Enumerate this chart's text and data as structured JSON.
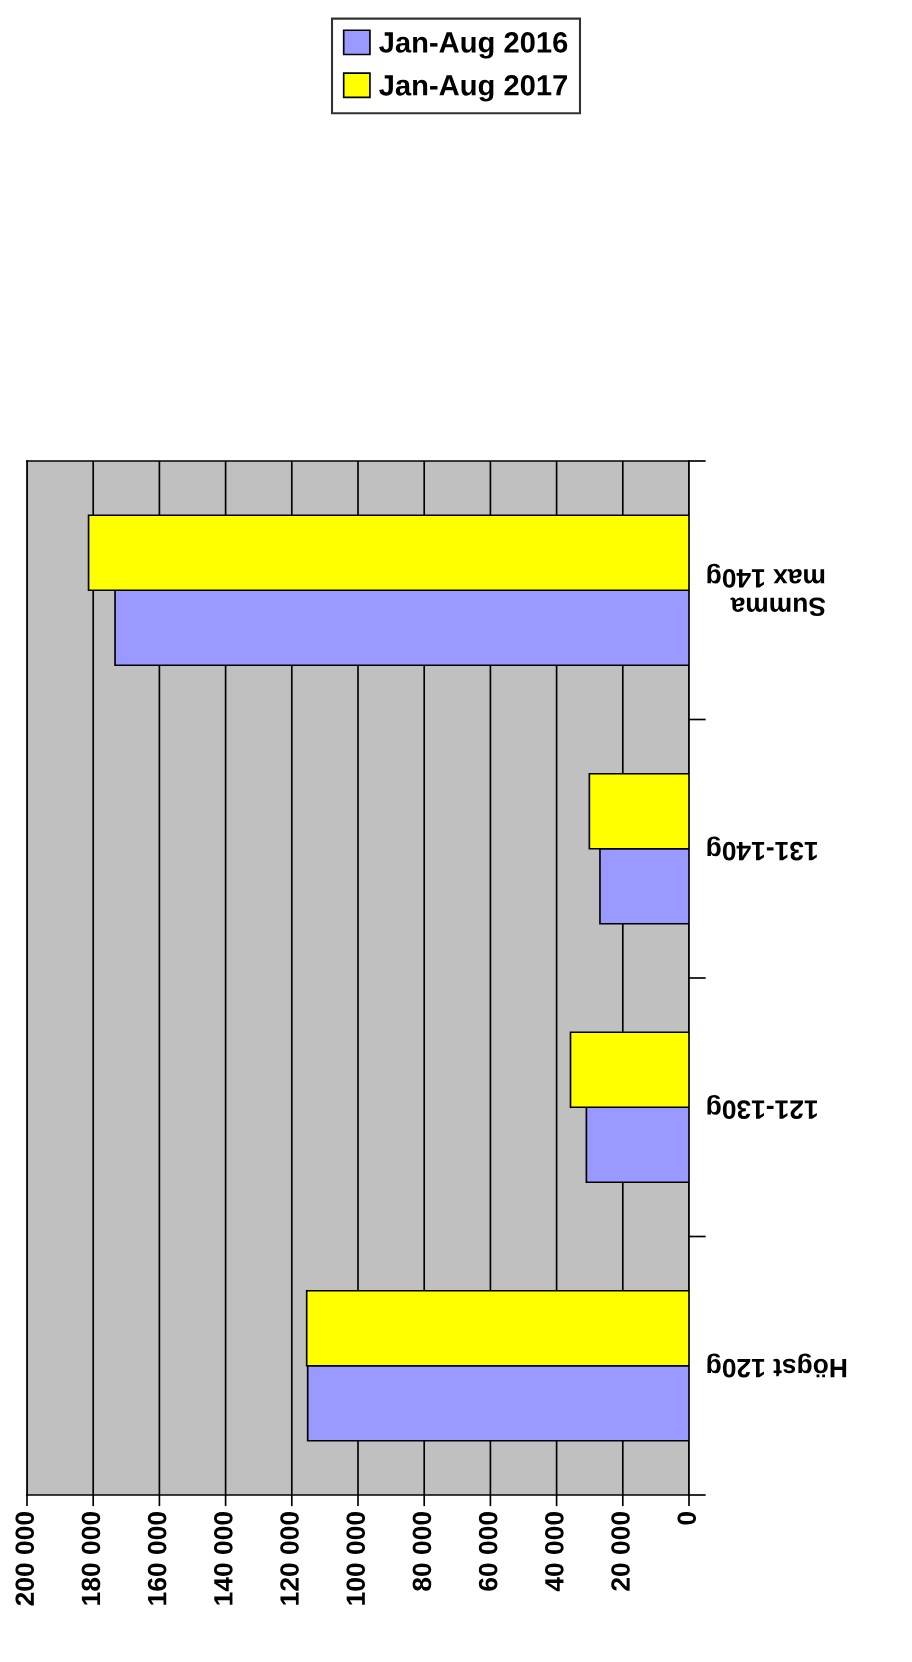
{
  "chart_data": {
    "type": "bar",
    "orientation": "horizontal",
    "categories": [
      "Summa\nmax 140g",
      "131-140g",
      "121-130g",
      "Högst 120g"
    ],
    "series": [
      {
        "name": "Jan-Aug 2016",
        "color": "#9999ff",
        "values": [
          173400,
          26900,
          31000,
          115200
        ]
      },
      {
        "name": "Jan-Aug 2017",
        "color": "#ffff00",
        "values": [
          181400,
          30100,
          35800,
          115500
        ]
      }
    ],
    "xlim": [
      200000,
      0
    ],
    "xticks": [
      {
        "value": 200000,
        "label": "200 000"
      },
      {
        "value": 180000,
        "label": "180 000"
      },
      {
        "value": 160000,
        "label": "160 000"
      },
      {
        "value": 140000,
        "label": "140 000"
      },
      {
        "value": 120000,
        "label": "120 000"
      },
      {
        "value": 100000,
        "label": "100 000"
      },
      {
        "value": 80000,
        "label": "80 000"
      },
      {
        "value": 60000,
        "label": "60 000"
      },
      {
        "value": 40000,
        "label": "40 000"
      },
      {
        "value": 20000,
        "label": "20 000"
      },
      0
    ],
    "grid": "x",
    "legend": "top"
  }
}
